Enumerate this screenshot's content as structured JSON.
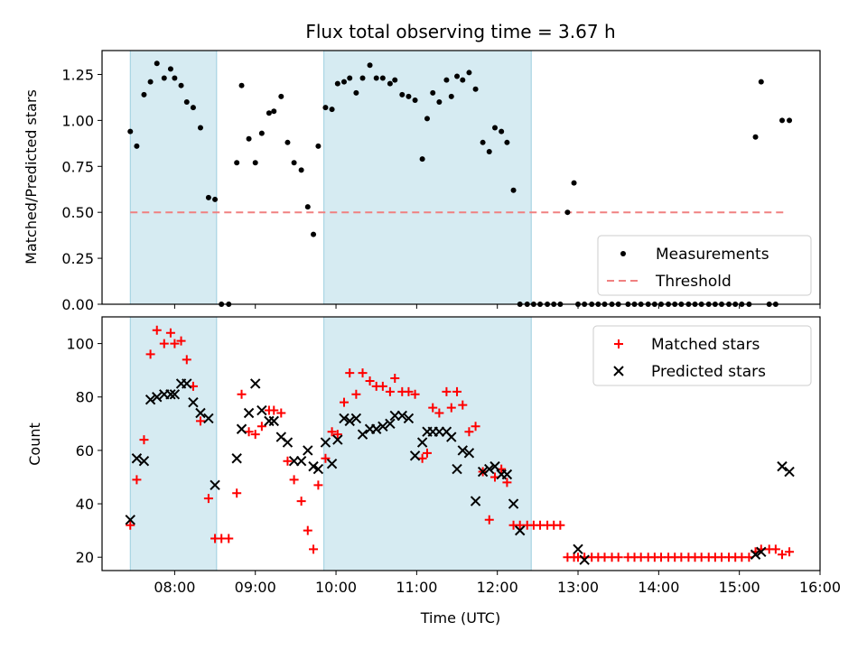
{
  "chart_data": [
    {
      "panel": "top",
      "type": "scatter",
      "title": "Flux total observing time = 3.67 h",
      "xlabel": "",
      "ylabel": "Matched/Predicted stars",
      "xlim": [
        7.1,
        16.0
      ],
      "ylim": [
        0.0,
        1.38
      ],
      "yticks": [
        0.0,
        0.25,
        0.5,
        0.75,
        1.0,
        1.25
      ],
      "ytick_labels": [
        "0.00",
        "0.25",
        "0.50",
        "0.75",
        "1.00",
        "1.25"
      ],
      "shaded_intervals": [
        [
          7.45,
          8.52
        ],
        [
          9.85,
          12.42
        ]
      ],
      "threshold": {
        "name": "Threshold",
        "value": 0.5,
        "x_range": [
          7.45,
          15.6
        ],
        "color": "#f08080"
      },
      "series": [
        {
          "name": "Measurements",
          "color": "#000000",
          "marker": "dot",
          "x": [
            7.45,
            7.53,
            7.62,
            7.7,
            7.78,
            7.87,
            7.95,
            8.0,
            8.08,
            8.15,
            8.23,
            8.32,
            8.42,
            8.5,
            8.58,
            8.67,
            8.77,
            8.83,
            8.92,
            9.0,
            9.08,
            9.17,
            9.23,
            9.32,
            9.4,
            9.48,
            9.57,
            9.65,
            9.72,
            9.78,
            9.87,
            9.95,
            10.02,
            10.1,
            10.17,
            10.25,
            10.33,
            10.42,
            10.5,
            10.58,
            10.67,
            10.73,
            10.82,
            10.9,
            10.98,
            11.07,
            11.13,
            11.2,
            11.28,
            11.37,
            11.43,
            11.5,
            11.57,
            11.65,
            11.73,
            11.82,
            11.9,
            11.97,
            12.05,
            12.12,
            12.2,
            12.28,
            12.37,
            12.45,
            12.53,
            12.62,
            12.7,
            12.78,
            12.87,
            12.95,
            13.0,
            13.08,
            13.17,
            13.25,
            13.33,
            13.42,
            13.5,
            13.62,
            13.7,
            13.78,
            13.87,
            13.95,
            14.03,
            14.12,
            14.2,
            14.28,
            14.37,
            14.45,
            14.53,
            14.62,
            14.7,
            14.78,
            14.87,
            14.95,
            15.03,
            15.12,
            15.2,
            15.27,
            15.37,
            15.45,
            15.53,
            15.62
          ],
          "y": [
            0.94,
            0.86,
            1.14,
            1.21,
            1.31,
            1.23,
            1.28,
            1.23,
            1.19,
            1.1,
            1.07,
            0.96,
            0.58,
            0.57,
            0.0,
            0.0,
            0.77,
            1.19,
            0.9,
            0.77,
            0.93,
            1.04,
            1.05,
            1.13,
            0.88,
            0.77,
            0.73,
            0.53,
            0.38,
            0.86,
            1.07,
            1.06,
            1.2,
            1.21,
            1.23,
            1.15,
            1.23,
            1.3,
            1.23,
            1.23,
            1.2,
            1.22,
            1.14,
            1.13,
            1.11,
            0.79,
            1.01,
            1.15,
            1.1,
            1.22,
            1.13,
            1.24,
            1.22,
            1.26,
            1.17,
            0.88,
            0.83,
            0.96,
            0.94,
            0.88,
            0.62,
            0.0,
            0.0,
            0.0,
            0.0,
            0.0,
            0.0,
            0.0,
            0.5,
            0.66,
            0.0,
            0.0,
            0.0,
            0.0,
            0.0,
            0.0,
            0.0,
            0.0,
            0.0,
            0.0,
            0.0,
            0.0,
            0.0,
            0.0,
            0.0,
            0.0,
            0.0,
            0.0,
            0.0,
            0.0,
            0.0,
            0.0,
            0.0,
            0.0,
            0.0,
            0.0,
            0.91,
            1.21,
            0.0,
            0.0,
            1.0,
            1.0
          ]
        }
      ],
      "legend": {
        "location": "lower right",
        "entries": [
          "Measurements",
          "Threshold"
        ]
      }
    },
    {
      "panel": "bottom",
      "type": "scatter",
      "title": "",
      "xlabel": "Time (UTC)",
      "ylabel": "Count",
      "xlim": [
        7.1,
        16.0
      ],
      "ylim": [
        15,
        110
      ],
      "xticks": [
        8,
        9,
        10,
        11,
        12,
        13,
        14,
        15,
        16
      ],
      "xtick_labels": [
        "08:00",
        "09:00",
        "10:00",
        "11:00",
        "12:00",
        "13:00",
        "14:00",
        "15:00",
        "16:00"
      ],
      "yticks": [
        20,
        40,
        60,
        80,
        100
      ],
      "ytick_labels": [
        "20",
        "40",
        "60",
        "80",
        "100"
      ],
      "shaded_intervals": [
        [
          7.45,
          8.52
        ],
        [
          9.85,
          12.42
        ]
      ],
      "series": [
        {
          "name": "Matched stars",
          "color": "#ff0000",
          "marker": "plus",
          "x": [
            7.45,
            7.53,
            7.62,
            7.7,
            7.78,
            7.87,
            7.95,
            8.0,
            8.08,
            8.15,
            8.23,
            8.32,
            8.42,
            8.5,
            8.58,
            8.67,
            8.77,
            8.83,
            8.92,
            9.0,
            9.08,
            9.17,
            9.23,
            9.32,
            9.4,
            9.48,
            9.57,
            9.65,
            9.72,
            9.78,
            9.87,
            9.95,
            10.02,
            10.1,
            10.17,
            10.25,
            10.33,
            10.42,
            10.5,
            10.58,
            10.67,
            10.73,
            10.82,
            10.9,
            10.98,
            11.07,
            11.13,
            11.2,
            11.28,
            11.37,
            11.43,
            11.5,
            11.57,
            11.65,
            11.73,
            11.82,
            11.9,
            11.97,
            12.05,
            12.12,
            12.2,
            12.28,
            12.37,
            12.45,
            12.53,
            12.62,
            12.7,
            12.78,
            12.87,
            12.95,
            13.0,
            13.08,
            13.17,
            13.25,
            13.33,
            13.42,
            13.5,
            13.62,
            13.7,
            13.78,
            13.87,
            13.95,
            14.03,
            14.12,
            14.2,
            14.28,
            14.37,
            14.45,
            14.53,
            14.62,
            14.7,
            14.78,
            14.87,
            14.95,
            15.03,
            15.12,
            15.2,
            15.27,
            15.37,
            15.45,
            15.53,
            15.62
          ],
          "y": [
            32,
            49,
            64,
            96,
            105,
            100,
            104,
            100,
            101,
            94,
            84,
            71,
            42,
            27,
            27,
            27,
            44,
            81,
            67,
            66,
            69,
            75,
            75,
            74,
            56,
            49,
            41,
            30,
            23,
            47,
            57,
            67,
            66,
            78,
            89,
            81,
            89,
            86,
            84,
            84,
            82,
            87,
            82,
            82,
            81,
            57,
            59,
            76,
            74,
            82,
            76,
            82,
            77,
            67,
            69,
            52,
            34,
            50,
            53,
            48,
            32,
            32,
            32,
            32,
            32,
            32,
            32,
            32,
            20,
            20,
            20,
            20,
            20,
            20,
            20,
            20,
            20,
            20,
            20,
            20,
            20,
            20,
            20,
            20,
            20,
            20,
            20,
            20,
            20,
            20,
            20,
            20,
            20,
            20,
            20,
            20,
            22,
            23,
            23,
            23,
            21,
            22
          ]
        },
        {
          "name": "Predicted stars",
          "color": "#000000",
          "marker": "x",
          "x": [
            7.45,
            7.53,
            7.62,
            7.7,
            7.78,
            7.87,
            7.95,
            8.0,
            8.08,
            8.15,
            8.23,
            8.32,
            8.42,
            8.5,
            8.77,
            8.83,
            8.92,
            9.0,
            9.08,
            9.17,
            9.23,
            9.32,
            9.4,
            9.48,
            9.57,
            9.65,
            9.72,
            9.78,
            9.87,
            9.95,
            10.02,
            10.1,
            10.17,
            10.25,
            10.33,
            10.42,
            10.5,
            10.58,
            10.67,
            10.73,
            10.82,
            10.9,
            10.98,
            11.07,
            11.13,
            11.2,
            11.28,
            11.37,
            11.43,
            11.5,
            11.57,
            11.65,
            11.73,
            11.82,
            11.9,
            11.97,
            12.05,
            12.12,
            12.2,
            12.28,
            13.0,
            13.08,
            15.2,
            15.27,
            15.53,
            15.62
          ],
          "y": [
            34,
            57,
            56,
            79,
            80,
            81,
            81,
            81,
            85,
            85,
            78,
            74,
            72,
            47,
            57,
            68,
            74,
            85,
            75,
            71,
            71,
            65,
            63,
            56,
            56,
            60,
            54,
            53,
            63,
            55,
            64,
            72,
            71,
            72,
            66,
            68,
            68,
            69,
            70,
            73,
            73,
            72,
            58,
            63,
            67,
            67,
            67,
            67,
            65,
            53,
            60,
            59,
            41,
            52,
            53,
            54,
            51,
            51,
            40,
            30,
            23,
            19,
            21,
            22,
            54,
            52
          ]
        }
      ],
      "legend": {
        "location": "upper right",
        "entries": [
          "Matched stars",
          "Predicted stars"
        ]
      }
    }
  ]
}
